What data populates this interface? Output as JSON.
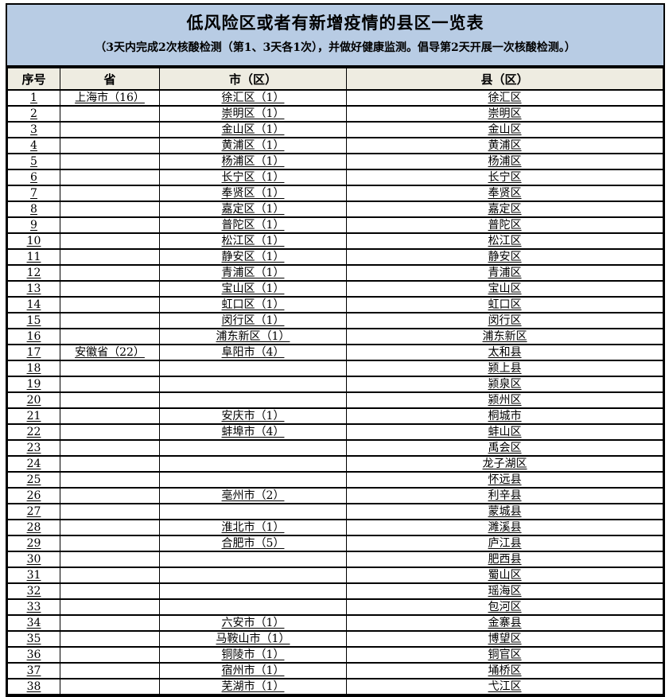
{
  "title": "低风险区或者有新增疫情的县区一览表",
  "subtitle": "（3天内完成2次核酸检测（第1、3天各1次），并做好健康监测。倡导第2天开展一次核酸检测。）",
  "colors": {
    "title_bg": "#b8cce4",
    "header_bg": "#eeece1",
    "border": "#000000",
    "text": "#000000"
  },
  "table": {
    "columns": [
      "序号",
      "省",
      "市（区）",
      "县（区）"
    ],
    "rows": [
      [
        "1",
        "上海市（16）",
        "徐汇区（1）",
        "徐汇区"
      ],
      [
        "2",
        "",
        "崇明区（1）",
        "崇明区"
      ],
      [
        "3",
        "",
        "金山区（1）",
        "金山区"
      ],
      [
        "4",
        "",
        "黄浦区（1）",
        "黄浦区"
      ],
      [
        "5",
        "",
        "杨浦区（1）",
        "杨浦区"
      ],
      [
        "6",
        "",
        "长宁区（1）",
        "长宁区"
      ],
      [
        "7",
        "",
        "奉贤区（1）",
        "奉贤区"
      ],
      [
        "8",
        "",
        "嘉定区（1）",
        "嘉定区"
      ],
      [
        "9",
        "",
        "普陀区（1）",
        "普陀区"
      ],
      [
        "10",
        "",
        "松江区（1）",
        "松江区"
      ],
      [
        "11",
        "",
        "静安区（1）",
        "静安区"
      ],
      [
        "12",
        "",
        "青浦区（1）",
        "青浦区"
      ],
      [
        "13",
        "",
        "宝山区（1）",
        "宝山区"
      ],
      [
        "14",
        "",
        "虹口区（1）",
        "虹口区"
      ],
      [
        "15",
        "",
        "闵行区（1）",
        "闵行区"
      ],
      [
        "16",
        "",
        "浦东新区（1）",
        "浦东新区"
      ],
      [
        "17",
        "安徽省（22）",
        "阜阳市（4）",
        "太和县"
      ],
      [
        "18",
        "",
        "",
        "颍上县"
      ],
      [
        "19",
        "",
        "",
        "颍泉区"
      ],
      [
        "20",
        "",
        "",
        "颍州区"
      ],
      [
        "21",
        "",
        "安庆市（1）",
        "桐城市"
      ],
      [
        "22",
        "",
        "蚌埠市（4）",
        "蚌山区"
      ],
      [
        "23",
        "",
        "",
        "禹会区"
      ],
      [
        "24",
        "",
        "",
        "龙子湖区"
      ],
      [
        "25",
        "",
        "",
        "怀远县"
      ],
      [
        "26",
        "",
        "亳州市（2）",
        "利辛县"
      ],
      [
        "27",
        "",
        "",
        "蒙城县"
      ],
      [
        "28",
        "",
        "淮北市（1）",
        "濉溪县"
      ],
      [
        "29",
        "",
        "合肥市（5）",
        "庐江县"
      ],
      [
        "30",
        "",
        "",
        "肥西县"
      ],
      [
        "31",
        "",
        "",
        "蜀山区"
      ],
      [
        "32",
        "",
        "",
        "瑶海区"
      ],
      [
        "33",
        "",
        "",
        "包河区"
      ],
      [
        "34",
        "",
        "六安市（1）",
        "金寨县"
      ],
      [
        "35",
        "",
        "马鞍山市（1）",
        "博望区"
      ],
      [
        "36",
        "",
        "铜陵市（1）",
        "铜官区"
      ],
      [
        "37",
        "",
        "宿州市（1）",
        "埇桥区"
      ],
      [
        "38",
        "",
        "芜湖市（1）",
        "弋江区"
      ]
    ]
  }
}
